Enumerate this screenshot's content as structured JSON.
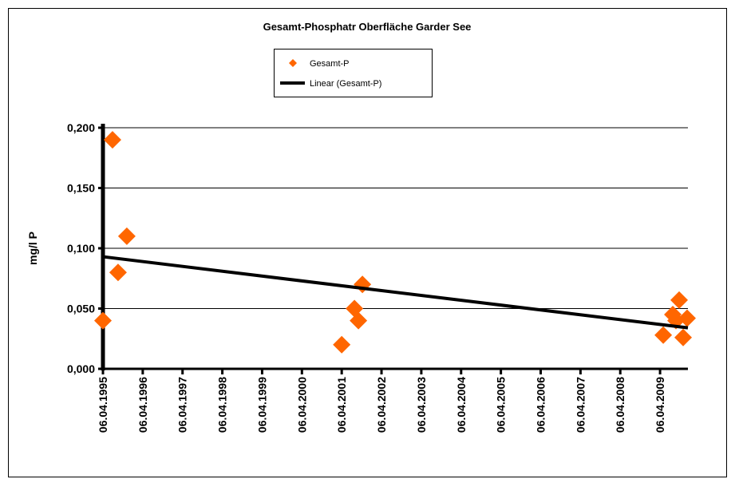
{
  "chart_data": {
    "type": "scatter",
    "title": "Gesamt-Phosphatr Oberfläche  Garder See",
    "y_label": "mg/l P",
    "xlim": [
      1995.26,
      2009.96
    ],
    "xticks": [
      {
        "value": 1995.26,
        "label": "06.04.1995"
      },
      {
        "value": 1996.26,
        "label": "06.04.1996"
      },
      {
        "value": 1997.26,
        "label": "06.04.1997"
      },
      {
        "value": 1998.26,
        "label": "06.04.1998"
      },
      {
        "value": 1999.26,
        "label": "06.04.1999"
      },
      {
        "value": 2000.26,
        "label": "06.04.2000"
      },
      {
        "value": 2001.26,
        "label": "06.04.2001"
      },
      {
        "value": 2002.26,
        "label": "06.04.2002"
      },
      {
        "value": 2003.26,
        "label": "06.04.2003"
      },
      {
        "value": 2004.26,
        "label": "06.04.2004"
      },
      {
        "value": 2005.26,
        "label": "06.04.2005"
      },
      {
        "value": 2006.26,
        "label": "06.04.2006"
      },
      {
        "value": 2007.26,
        "label": "06.04.2007"
      },
      {
        "value": 2008.26,
        "label": "06.04.2008"
      },
      {
        "value": 2009.26,
        "label": "06.04.2009"
      }
    ],
    "ylim": [
      0,
      0.2
    ],
    "yticks": [
      {
        "value": 0,
        "label": "0,000"
      },
      {
        "value": 0.05,
        "label": "0,050"
      },
      {
        "value": 0.1,
        "label": "0,100"
      },
      {
        "value": 0.15,
        "label": "0,150"
      },
      {
        "value": 0.2,
        "label": "0,200"
      }
    ],
    "grid": true,
    "legend": "top",
    "series": [
      {
        "name": "Gesamt-P",
        "color": "#ff6600",
        "x": [
          1995.26,
          1995.5,
          1995.64,
          1995.86,
          2001.26,
          2001.58,
          2001.68,
          2001.78,
          2009.34,
          2009.58,
          2009.74,
          2009.66,
          2009.84,
          2009.94
        ],
        "values": [
          0.04,
          0.19,
          0.08,
          0.11,
          0.02,
          0.05,
          0.04,
          0.07,
          0.028,
          0.045,
          0.057,
          0.04,
          0.026,
          0.042
        ]
      },
      {
        "name": "Linear (Gesamt-P)",
        "color": "#000000",
        "kind": "line",
        "x": [
          1995.26,
          2009.96
        ],
        "values": [
          0.093,
          0.034
        ]
      }
    ]
  }
}
